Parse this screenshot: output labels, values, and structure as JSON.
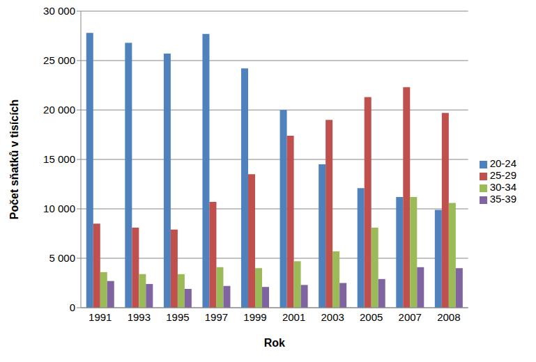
{
  "chart_data": {
    "type": "bar",
    "x_label": "Rok",
    "y_label": "Počet sňatků v tisících",
    "categories": [
      "1991",
      "1993",
      "1995",
      "1997",
      "1999",
      "2001",
      "2003",
      "2005",
      "2007",
      "2008"
    ],
    "series": [
      {
        "name": "20-24",
        "color": "#4f81bd",
        "values": [
          27800,
          26800,
          25700,
          27700,
          24200,
          20000,
          14500,
          12100,
          11200,
          9900
        ]
      },
      {
        "name": "25-29",
        "color": "#c0504d",
        "values": [
          8500,
          8100,
          7900,
          10700,
          13500,
          17400,
          19000,
          21300,
          22300,
          19700
        ]
      },
      {
        "name": "30-34",
        "color": "#9bbb59",
        "values": [
          3600,
          3400,
          3400,
          4100,
          4000,
          4700,
          5700,
          8100,
          11200,
          10600
        ]
      },
      {
        "name": "35-39",
        "color": "#8064a2",
        "values": [
          2700,
          2400,
          1900,
          2200,
          2100,
          2300,
          2500,
          2900,
          4100,
          4000
        ]
      }
    ],
    "ylim": [
      0,
      30000
    ],
    "yticks": [
      0,
      {
        "value": 5000,
        "label": "5 000"
      },
      {
        "value": 10000,
        "label": "10 000"
      },
      {
        "value": 15000,
        "label": "15 000"
      },
      {
        "value": 20000,
        "label": "20 000"
      },
      {
        "value": 25000,
        "label": "25 000"
      },
      {
        "value": 30000,
        "label": "30 000"
      }
    ],
    "grid": true,
    "legend": "right"
  }
}
